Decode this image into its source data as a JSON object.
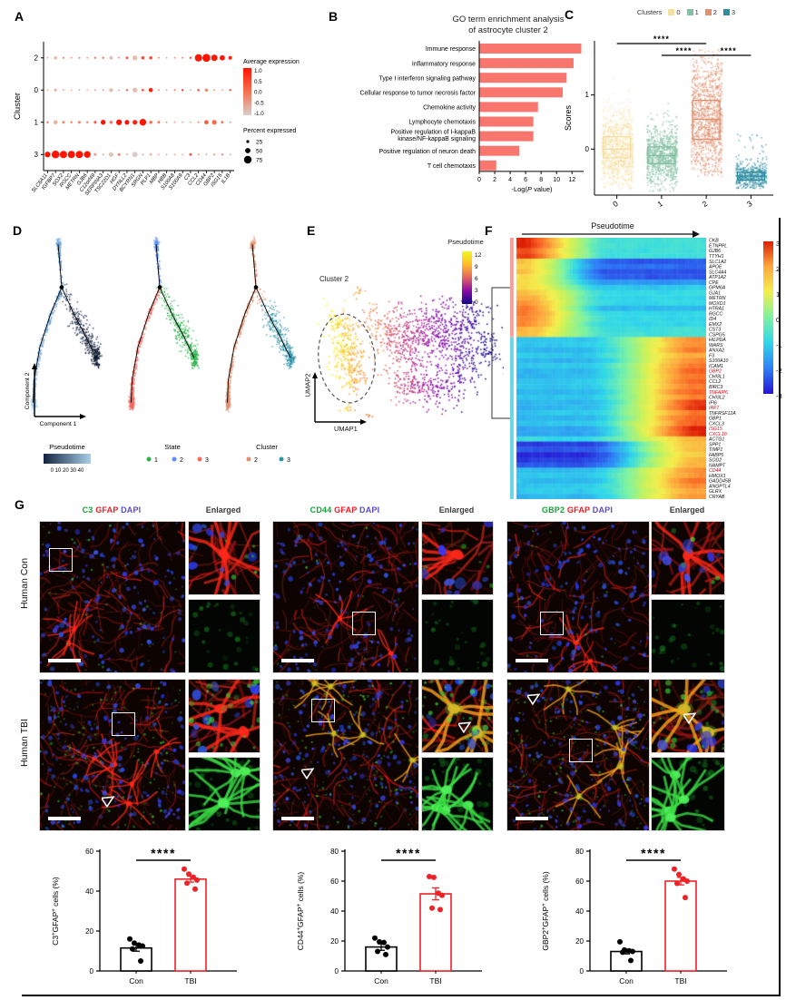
{
  "figure": {
    "labels": {
      "a": "A",
      "b": "B",
      "c": "C",
      "d": "D",
      "e": "E",
      "f": "F",
      "g": "G"
    }
  },
  "chart_data": [
    {
      "id": "dotplot",
      "type": "scatter",
      "ylabel": "Cluster",
      "rows": [
        "2",
        "0",
        "1",
        "3"
      ],
      "genes": [
        "SLC6A11",
        "IGFBP7",
        "SOX2",
        "RGCC",
        "METRN",
        "GJB6",
        "C12orf49",
        "SERPINA3",
        "TSC22D1",
        "HGF",
        "DYNLL2",
        "BCYRN1",
        "SRGN",
        "PLP1",
        "MBP",
        "HBB",
        "S100A8",
        "S100A9",
        "C3",
        "CCL2",
        "CD44",
        "GBP2",
        "ISG15",
        "IL1B"
      ],
      "percent_expressed": [
        [
          12,
          30,
          20,
          16,
          20,
          16,
          22,
          22,
          38,
          16,
          26,
          48,
          32,
          32,
          16,
          10,
          16,
          16,
          22,
          72,
          78,
          62,
          52,
          36
        ],
        [
          10,
          26,
          16,
          14,
          16,
          14,
          16,
          16,
          36,
          12,
          22,
          46,
          26,
          42,
          16,
          10,
          16,
          20,
          14,
          26,
          30,
          16,
          12,
          22
        ],
        [
          20,
          40,
          26,
          22,
          26,
          22,
          28,
          48,
          32,
          56,
          46,
          46,
          66,
          32,
          26,
          16,
          14,
          14,
          10,
          16,
          42,
          46,
          26,
          16
        ],
        [
          56,
          76,
          72,
          72,
          72,
          66,
          30,
          16,
          46,
          26,
          22,
          52,
          16,
          26,
          14,
          10,
          10,
          10,
          26,
          16,
          16,
          20,
          20,
          14
        ]
      ],
      "avg_expression": [
        [
          0.2,
          -0.3,
          0.1,
          0.1,
          0.0,
          0.1,
          0.2,
          0.3,
          -0.7,
          0.3,
          0.5,
          -0.6,
          0.6,
          0.6,
          0.3,
          0.2,
          0.3,
          0.4,
          0.6,
          1.0,
          1.0,
          1.0,
          1.0,
          0.9
        ],
        [
          0.1,
          -0.2,
          0.0,
          0.0,
          0.0,
          0.0,
          0.1,
          0.1,
          -0.4,
          0.2,
          0.3,
          -0.5,
          0.4,
          0.9,
          0.3,
          0.1,
          0.5,
          0.8,
          0.2,
          0.3,
          0.2,
          0.2,
          0.2,
          0.5
        ],
        [
          0.4,
          -0.3,
          0.2,
          0.2,
          0.2,
          0.2,
          0.5,
          1.0,
          0.3,
          1.0,
          1.0,
          0.9,
          1.0,
          0.4,
          0.3,
          0.2,
          0.2,
          0.2,
          0.2,
          0.4,
          0.5,
          0.4,
          0.3,
          0.2
        ],
        [
          1.0,
          1.0,
          1.0,
          1.0,
          1.0,
          1.0,
          -0.2,
          0.1,
          -0.8,
          0.2,
          -0.9,
          -0.9,
          0.2,
          -0.5,
          0.1,
          0.0,
          0.0,
          0.0,
          0.5,
          0.1,
          0.1,
          0.0,
          0.2,
          0.1
        ]
      ],
      "legend": {
        "avg_title": "Average expression",
        "avg_ticks": [
          "1.0",
          "0.5",
          "0.0",
          "-0.5",
          "-1.0"
        ],
        "pct_title": "Percent expressed",
        "pct_ticks": [
          "25",
          "50",
          "75"
        ]
      },
      "colors": {
        "high": "#FF1400",
        "low": "#D9CEC9"
      }
    },
    {
      "id": "go_terms",
      "type": "bar",
      "title_lines": [
        "GO term enrichment analysis",
        "of astrocyte cluster 2"
      ],
      "categories": [
        [
          "Immune response"
        ],
        [
          "Inflammatory response"
        ],
        [
          "Type I interferon signaling pathway"
        ],
        [
          "Cellular response to tumor necrosis factor"
        ],
        [
          "Chemokine activity"
        ],
        [
          "Lymphocyte chemotaxis"
        ],
        [
          "Positive regulation of I-kappaB",
          "kinase/NF-kappaB signaling"
        ],
        [
          "Positive regulation of neuron death"
        ],
        [
          "T cell chemotaxis"
        ]
      ],
      "values": [
        13.2,
        12.2,
        11.3,
        10.8,
        7.6,
        7.0,
        7.0,
        5.2,
        2.2
      ],
      "xticks": [
        0,
        2,
        4,
        6,
        8,
        10,
        12
      ],
      "xlim": [
        0,
        13.5
      ],
      "xlabel_parts": [
        "-Log(",
        "P",
        " value)"
      ],
      "bar_color": "#F8766D"
    },
    {
      "id": "cluster_scores",
      "type": "box",
      "legend_title": "Clusters",
      "categories": [
        "0",
        "1",
        "2",
        "3"
      ],
      "colors": [
        "#F5DFA2",
        "#83BFA2",
        "#E0906F",
        "#2E8CA1"
      ],
      "ylabel": "Scores",
      "yticks": [
        0,
        1
      ],
      "boxes": [
        {
          "q1": -0.16,
          "median": 0.0,
          "q3": 0.23,
          "lo": -0.72,
          "hi": 1.35
        },
        {
          "q1": -0.27,
          "median": -0.12,
          "q3": 0.04,
          "lo": -0.78,
          "hi": 1.15
        },
        {
          "q1": 0.18,
          "median": 0.55,
          "q3": 0.9,
          "lo": -0.5,
          "hi": 1.85
        },
        {
          "q1": -0.57,
          "median": -0.5,
          "q3": -0.43,
          "lo": -0.72,
          "hi": 0.3
        }
      ],
      "n_points": [
        900,
        900,
        1100,
        500
      ],
      "significance": [
        {
          "a": 0,
          "b": 2,
          "label": "****",
          "level": 1
        },
        {
          "a": 1,
          "b": 2,
          "label": "****",
          "level": 2
        },
        {
          "a": 2,
          "b": 3,
          "label": "****",
          "level": 2
        }
      ]
    },
    {
      "id": "trajectories",
      "type": "scatter",
      "xlabel": "Component 1",
      "ylabel": "Component 2",
      "legends": [
        {
          "title": "Pseudotime",
          "ticks": "0 10 20 30 40",
          "gradient": [
            "#13233F",
            "#A9CFE9"
          ]
        },
        {
          "title": "State",
          "items": [
            {
              "label": "1",
              "color": "#2CB14B"
            },
            {
              "label": "2",
              "color": "#5B8FF5"
            },
            {
              "label": "3",
              "color": "#F4695E"
            }
          ]
        },
        {
          "title": "Cluster",
          "items": [
            {
              "label": "2",
              "color": "#E2906C"
            },
            {
              "label": "3",
              "color": "#2E93A8"
            }
          ]
        }
      ]
    },
    {
      "id": "umap_pseudotime",
      "type": "scatter",
      "xlabel": "UMAP1",
      "ylabel": "UMAP2",
      "annotation": "Cluster 2",
      "legend_title": "Pseudotime",
      "legend_ticks": [
        "12",
        "9",
        "6",
        "3",
        "0"
      ]
    },
    {
      "id": "pseudotime_heatmap",
      "type": "heatmap",
      "title": "Pseudotime",
      "colorbar_ticks": [
        "3",
        "2",
        "1",
        "0",
        "-1",
        "-2",
        "-3"
      ],
      "highlighted_genes": [
        "GBP2",
        "TNFAIP6",
        "IRF7",
        "ISG15",
        "CXCL10",
        "CD44"
      ],
      "genes_down": [
        [
          "CKB",
          3,
          -0.8
        ],
        [
          "ETNPPL",
          3,
          -0.8
        ],
        [
          "GJB6",
          2.6,
          -0.8
        ],
        [
          "TTYH1",
          2.8,
          -0.8
        ],
        [
          "SLC1A2",
          1.6,
          -2.4
        ],
        [
          "APOE",
          1.5,
          -2.2
        ],
        [
          "SLC4A4",
          1.6,
          -2.4
        ],
        [
          "ATP1A2",
          1.5,
          -2.4
        ],
        [
          "CPE",
          1.4,
          -1.8
        ],
        [
          "GPM6A",
          1.5,
          -1.2
        ],
        [
          "GJA1",
          1.8,
          -1.0
        ],
        [
          "METRN",
          2.0,
          -1.0
        ],
        [
          "MOXD1",
          2.2,
          -1.0
        ],
        [
          "HTRA1",
          2.4,
          -1.4
        ],
        [
          "RGCC",
          2.4,
          -1.0
        ],
        [
          "ID4",
          2.4,
          -1.0
        ],
        [
          "EMX2",
          2.2,
          -1.0
        ],
        [
          "CST3",
          1.8,
          -0.8
        ],
        [
          "CSPG5",
          1.8,
          -0.8
        ]
      ],
      "genes_up": [
        [
          "HILPDA",
          -1.2,
          2.2
        ],
        [
          "WARS",
          -1.2,
          2.2
        ],
        [
          "ANXA2",
          -1.4,
          2.4
        ],
        [
          "F3",
          -1.2,
          2.0
        ],
        [
          "S100A10",
          -1.4,
          2.2
        ],
        [
          "ICAM1",
          -1.2,
          2.4
        ],
        [
          "GBP2",
          -1.4,
          2.6
        ],
        [
          "CHI3L1",
          -1.4,
          2.4
        ],
        [
          "CCL2",
          -1.2,
          2.6
        ],
        [
          "BIRC3",
          -1.2,
          2.4
        ],
        [
          "TNFAIP6",
          -1.4,
          2.6
        ],
        [
          "CHI3L2",
          -1.2,
          2.4
        ],
        [
          "IFI6",
          -1.4,
          2.8
        ],
        [
          "IRF7",
          -1.4,
          2.8
        ],
        [
          "TNFRSF12A",
          -1.2,
          2.4
        ],
        [
          "GBP1",
          -1.4,
          2.6
        ],
        [
          "CXCL3",
          -1.2,
          2.6
        ],
        [
          "ISG15",
          -1.6,
          3.0
        ],
        [
          "CXCL10",
          -1.6,
          3.0
        ],
        [
          "ACTG1",
          -1.0,
          1.8
        ],
        [
          "SPP1",
          -2.6,
          1.8
        ],
        [
          "TIMP1",
          -2.4,
          1.8
        ],
        [
          "FABP5",
          -2.8,
          1.6
        ],
        [
          "SOD2",
          -2.6,
          1.8
        ],
        [
          "NAMPT",
          -2.4,
          1.8
        ],
        [
          "CD44",
          -1.4,
          2.2
        ],
        [
          "HMOX1",
          -1.2,
          2.2
        ],
        [
          "GADD45B",
          -1.4,
          2.4
        ],
        [
          "ANGPTL4",
          -1.2,
          2.2
        ],
        [
          "GLRX",
          -1.2,
          2.0
        ],
        [
          "CRYAB",
          -1.4,
          2.2
        ]
      ]
    },
    {
      "id": "c3_quant",
      "type": "bar",
      "ylabel_parts": [
        [
          "C3",
          false
        ],
        [
          "+",
          true
        ],
        [
          "GFAP",
          false
        ],
        [
          "+",
          true
        ],
        [
          " cells (%)",
          false
        ]
      ],
      "ymax": 60,
      "yticks": [
        0,
        20,
        40,
        60
      ],
      "sig": "****",
      "groups": [
        {
          "label": "Con",
          "color": "#000000",
          "mean": 11.5,
          "sem": 1.6,
          "dots": [
            16,
            14,
            13,
            12.5,
            11,
            5
          ]
        },
        {
          "label": "TBI",
          "color": "#EC2227",
          "mean": 46,
          "sem": 1.5,
          "dots": [
            51,
            48.5,
            47,
            45.5,
            44,
            41
          ]
        }
      ]
    },
    {
      "id": "cd44_quant",
      "type": "bar",
      "ylabel_parts": [
        [
          "CD44",
          false
        ],
        [
          "+",
          true
        ],
        [
          "GFAP",
          false
        ],
        [
          "+",
          true
        ],
        [
          " cells (%)",
          false
        ]
      ],
      "ymax": 80,
      "yticks": [
        0,
        20,
        40,
        60,
        80
      ],
      "sig": "****",
      "groups": [
        {
          "label": "Con",
          "color": "#000000",
          "mean": 16,
          "sem": 2.2,
          "dots": [
            22,
            19.5,
            19,
            16,
            13,
            11
          ]
        },
        {
          "label": "TBI",
          "color": "#EC2227",
          "mean": 51.5,
          "sem": 4,
          "dots": [
            63,
            62.5,
            52,
            50.5,
            42,
            41
          ]
        }
      ]
    },
    {
      "id": "gbp2_quant",
      "type": "bar",
      "ylabel_parts": [
        [
          "GBP2",
          false
        ],
        [
          "+",
          true
        ],
        [
          "GFAP",
          false
        ],
        [
          "+",
          true
        ],
        [
          " cells (%)",
          false
        ]
      ],
      "ymax": 80,
      "yticks": [
        0,
        20,
        40,
        60,
        80
      ],
      "sig": "****",
      "groups": [
        {
          "label": "Con",
          "color": "#000000",
          "mean": 13,
          "sem": 1.6,
          "dots": [
            19.5,
            14,
            13.5,
            13,
            12.5,
            7
          ]
        },
        {
          "label": "TBI",
          "color": "#EC2227",
          "mean": 60,
          "sem": 2.5,
          "dots": [
            68,
            64.5,
            61.5,
            60,
            58.5,
            49
          ]
        }
      ]
    }
  ],
  "panelG": {
    "columns": [
      {
        "marker": "C3",
        "gfap": "GFAP",
        "dapi": "DAPI"
      },
      {
        "marker": "CD44",
        "gfap": "GFAP",
        "dapi": "DAPI"
      },
      {
        "marker": "GBP2",
        "gfap": "GFAP",
        "dapi": "DAPI"
      }
    ],
    "colors": {
      "marker": "#13A538",
      "gfap": "#EE1C25",
      "dapi": "#5B4CC8"
    },
    "enlarged_label": "Enlarged",
    "row_labels": [
      "Human Con",
      "Human TBI"
    ],
    "boxes": {
      "con": [
        [
          0.07,
          0.18
        ],
        [
          0.55,
          0.6
        ],
        [
          0.24,
          0.6
        ]
      ],
      "tbi": [
        [
          0.5,
          0.22
        ],
        [
          0.27,
          0.13
        ],
        [
          0.44,
          0.4
        ]
      ]
    },
    "arrows": {
      "main_tbi": [
        [
          0.43,
          0.76
        ],
        [
          0.2,
          0.57
        ],
        [
          0.15,
          0.08
        ]
      ],
      "enl_tbi": [
        null,
        [
          0.52,
          0.55
        ],
        [
          0.45,
          0.42
        ]
      ]
    }
  }
}
